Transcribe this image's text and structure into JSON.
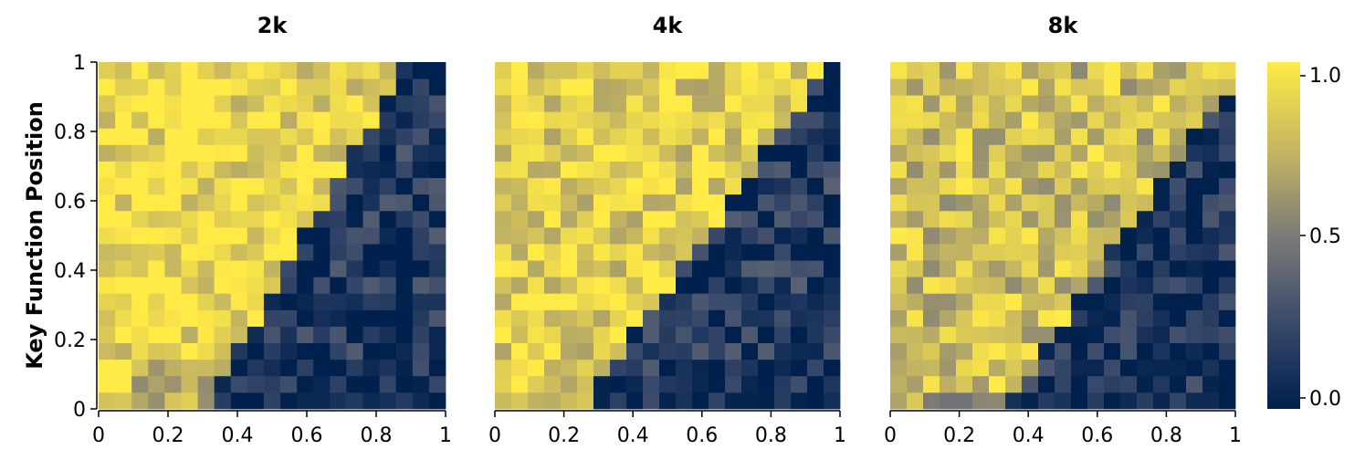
{
  "colorscale": {
    "low": "#00204d",
    "mid": "#7c7b78",
    "high": "#ffea46",
    "range": [
      0,
      1
    ],
    "ticks": [
      {
        "value": 1.0,
        "label": "1.0"
      },
      {
        "value": 0.5,
        "label": "0.5"
      },
      {
        "value": 0.0,
        "label": "0.0"
      }
    ]
  },
  "chart_data": [
    {
      "type": "heatmap",
      "title": "2k",
      "xlabel": "",
      "ylabel": "Key Function Position",
      "xlim": [
        0,
        1
      ],
      "ylim": [
        0,
        1
      ],
      "grid": false,
      "cols": 21,
      "rows": 21,
      "model": {
        "threshold": 0.6,
        "slope": 1.2,
        "hi": 0.92,
        "lo": 0.12,
        "floor": 0.15,
        "seed": 11
      },
      "xticks": [
        {
          "value": 0,
          "label": "0"
        },
        {
          "value": 0.2,
          "label": "0.2"
        },
        {
          "value": 0.4,
          "label": "0.4"
        },
        {
          "value": 0.6,
          "label": "0.6"
        },
        {
          "value": 0.8,
          "label": "0.8"
        },
        {
          "value": 1,
          "label": "1"
        }
      ],
      "yticks": [
        {
          "value": 0,
          "label": "0"
        },
        {
          "value": 0.2,
          "label": "0.2"
        },
        {
          "value": 0.4,
          "label": "0.4"
        },
        {
          "value": 0.6,
          "label": "0.6"
        },
        {
          "value": 0.8,
          "label": "0.8"
        },
        {
          "value": 1,
          "label": "1"
        }
      ]
    },
    {
      "type": "heatmap",
      "title": "4k",
      "xlabel": "",
      "ylabel": "",
      "xlim": [
        0,
        1
      ],
      "ylim": [
        0,
        1
      ],
      "grid": false,
      "cols": 21,
      "rows": 21,
      "model": {
        "threshold": 0.45,
        "slope": 1.05,
        "hi": 0.88,
        "lo": 0.14,
        "floor": 0.08,
        "seed": 23
      },
      "xticks": [
        {
          "value": 0,
          "label": "0"
        },
        {
          "value": 0.2,
          "label": "0.2"
        },
        {
          "value": 0.4,
          "label": "0.4"
        },
        {
          "value": 0.6,
          "label": "0.6"
        },
        {
          "value": 0.8,
          "label": "0.8"
        },
        {
          "value": 1,
          "label": "1"
        }
      ],
      "yticks": []
    },
    {
      "type": "heatmap",
      "title": "8k",
      "xlabel": "",
      "ylabel": "",
      "xlim": [
        0,
        1
      ],
      "ylim": [
        0,
        1
      ],
      "grid": false,
      "cols": 21,
      "rows": 21,
      "model": {
        "threshold": 0.55,
        "slope": 0.95,
        "hi": 0.78,
        "lo": 0.1,
        "floor": 0.05,
        "seed": 37
      },
      "xticks": [
        {
          "value": 0,
          "label": "0"
        },
        {
          "value": 0.2,
          "label": "0.2"
        },
        {
          "value": 0.4,
          "label": "0.4"
        },
        {
          "value": 0.6,
          "label": "0.6"
        },
        {
          "value": 0.8,
          "label": "0.8"
        },
        {
          "value": 1,
          "label": "1"
        }
      ],
      "yticks": []
    }
  ]
}
